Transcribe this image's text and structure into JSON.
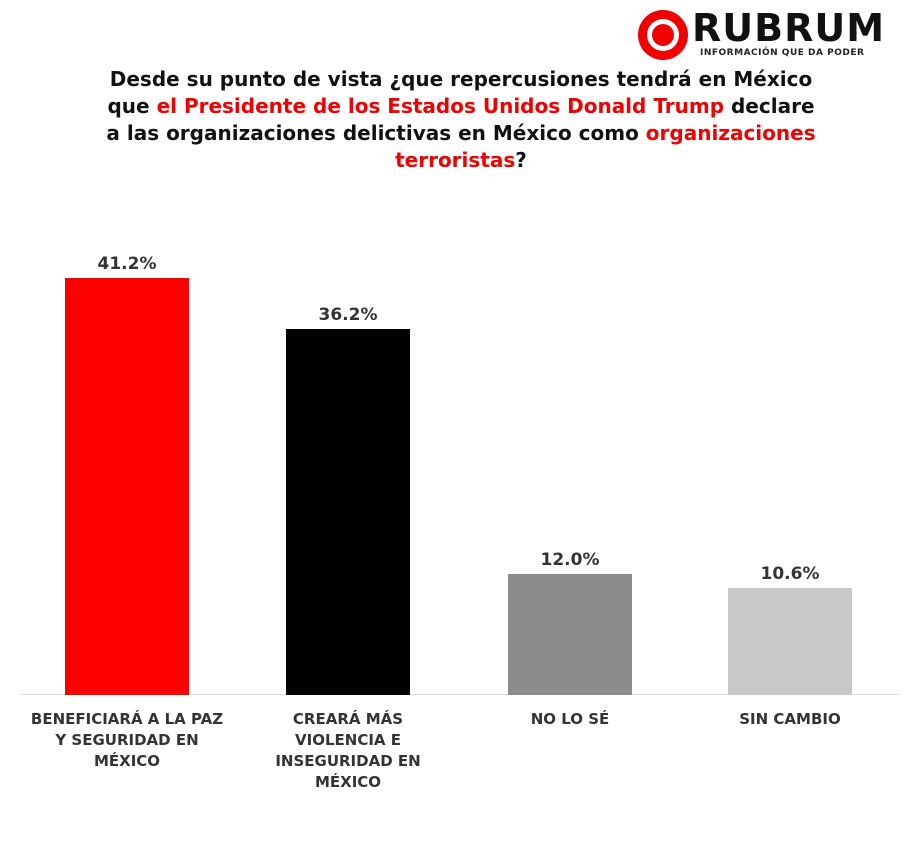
{
  "brand": {
    "name": "RUBRUM",
    "tagline": "INFORMACIÓN QUE DA PODER"
  },
  "chart_data": {
    "type": "bar",
    "title_parts": [
      "Desde su punto de vista ¿que repercusiones tendrá en México que ",
      "el Presidente de los Estados Unidos Donald Trump",
      " declare a las organizaciones delictivas en México como ",
      "organizaciones terroristas",
      "?"
    ],
    "title_highlight": [
      false,
      true,
      false,
      true,
      false
    ],
    "highlight_color": "#f00000",
    "categories": [
      "BENEFICIARÁ A LA PAZ Y SEGURIDAD EN MÉXICO",
      "CREARÁ MÁS VIOLENCIA E INSEGURIDAD EN MÉXICO",
      "NO LO SÉ",
      "SIN CAMBIO"
    ],
    "values": [
      41.2,
      36.2,
      12.0,
      10.6
    ],
    "value_labels": [
      "41.2%",
      "36.2%",
      "12.0%",
      "10.6%"
    ],
    "colors": [
      "#ff0000",
      "#000000",
      "#8c8c8c",
      "#c8c8c8"
    ]
  }
}
